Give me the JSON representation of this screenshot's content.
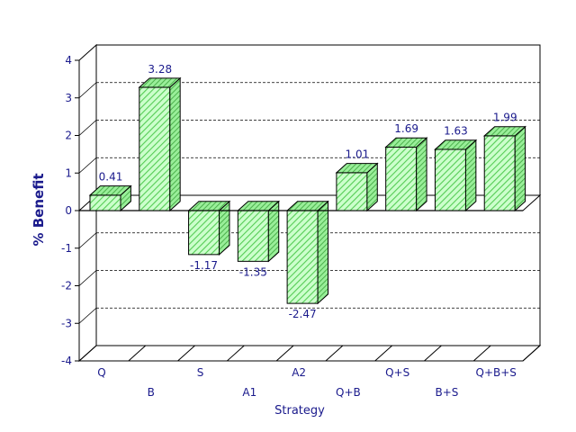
{
  "chart_data": {
    "type": "bar",
    "categories": [
      "Q",
      "B",
      "S",
      "A1",
      "A2",
      "Q+B",
      "Q+S",
      "B+S",
      "Q+B+S"
    ],
    "values": [
      0.41,
      3.28,
      -1.17,
      -1.35,
      -2.47,
      1.01,
      1.69,
      1.63,
      1.99
    ],
    "value_labels": [
      "0.41",
      "3.28",
      "-1.17",
      "-1.35",
      "-2.47",
      "1.01",
      "1.69",
      "1.63",
      "1.99"
    ],
    "xlabel": "Strategy",
    "ylabel": "% Benefit",
    "ylim": [
      -4,
      4
    ],
    "yticks": [
      "4",
      "3",
      "2",
      "1",
      "0",
      "-1",
      "-2",
      "-3",
      "-4"
    ],
    "grid": "dashed-horizontal",
    "colors": {
      "bar_face": "#ccffcc",
      "bar_hatch": "#55cc55",
      "bar_edge": "#000000",
      "text": "#1a1a8c"
    }
  }
}
